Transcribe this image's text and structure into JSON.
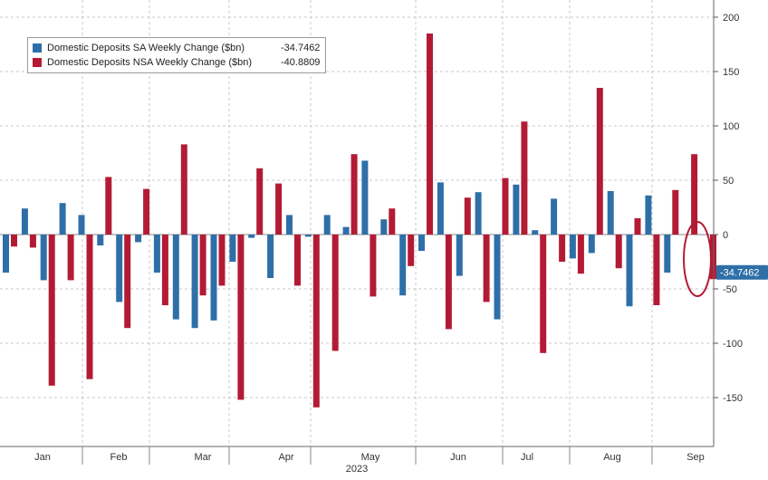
{
  "chart_data": {
    "type": "bar",
    "title": "",
    "xlabel": "2023",
    "ylabel": "",
    "ylim": [
      -175,
      205
    ],
    "yticks": [
      200,
      150,
      100,
      50,
      0,
      -50,
      -100,
      -150
    ],
    "grid": true,
    "legend_position": "top-left",
    "month_labels": [
      "Jan",
      "Feb",
      "Mar",
      "Apr",
      "May",
      "Jun",
      "Jul",
      "Aug",
      "Sep"
    ],
    "year_label": "2023",
    "last_value_label": "-34.7462",
    "series": [
      {
        "name": "Domestic Deposits SA Weekly Change ($bn)",
        "last_value": "-34.7462",
        "color": "#2f6fa8",
        "values": [
          -35,
          24,
          -42,
          29,
          18,
          -10,
          -62,
          -7,
          -35,
          -78,
          -86,
          -79,
          -25,
          -3,
          -40,
          18,
          -2,
          18,
          7,
          68,
          14,
          -56,
          -15,
          48,
          -38,
          39,
          -78,
          46,
          4,
          33,
          -22,
          -17,
          40,
          -66,
          36,
          -35
        ]
      },
      {
        "name": "Domestic Deposits NSA Weekly Change ($bn)",
        "last_value": "-40.8809",
        "color": "#b31b34",
        "values": [
          -11,
          -12,
          -139,
          -42,
          -133,
          53,
          -86,
          42,
          -65,
          83,
          -56,
          -47,
          -152,
          61,
          47,
          -47,
          -159,
          -107,
          74,
          -57,
          24,
          -29,
          185,
          -87,
          34,
          -62,
          52,
          104,
          -109,
          -25,
          -36,
          135,
          -31,
          15,
          -65,
          41,
          74,
          -41
        ]
      }
    ]
  }
}
